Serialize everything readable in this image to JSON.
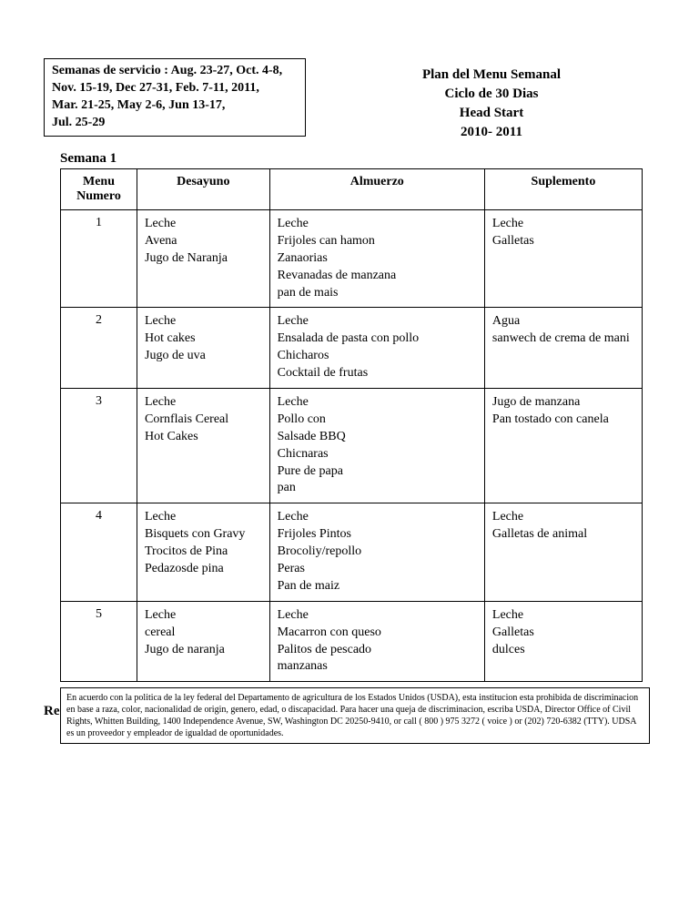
{
  "service_weeks": {
    "label": "Semanas de servicio :",
    "line1": "Aug. 23-27, Oct. 4-8,",
    "line2": "Nov. 15-19, Dec 27-31, Feb. 7-11, 2011,",
    "line3": "Mar. 21-25, May 2-6, Jun 13-17,",
    "line4": "Jul. 25-29"
  },
  "title": {
    "line1": "Plan del Menu Semanal",
    "line2": "Ciclo de 30 Dias",
    "line3": "Head Start",
    "line4": "2010- 2011"
  },
  "week_label": "Semana  1",
  "table": {
    "headers": {
      "num": "Menu Numero",
      "desayuno": "Desayuno",
      "almuerzo": "Almuerzo",
      "suplemento": "Suplemento"
    },
    "rows": [
      {
        "num": "1",
        "desayuno": [
          "Leche",
          "Avena",
          "Jugo de Naranja"
        ],
        "almuerzo": [
          "Leche",
          "Frijoles can hamon",
          "Zanaorias",
          "Revanadas de manzana",
          "pan de mais"
        ],
        "suplemento": [
          "Leche",
          "Galletas"
        ]
      },
      {
        "num": "2",
        "desayuno": [
          "Leche",
          "Hot cakes",
          "Jugo de uva"
        ],
        "almuerzo": [
          "Leche",
          "Ensalada de pasta con pollo",
          "Chicharos",
          "Cocktail de frutas"
        ],
        "suplemento": [
          "Agua",
          "sanwech de crema de mani"
        ]
      },
      {
        "num": "3",
        "desayuno": [
          "Leche",
          "Cornflais Cereal",
          "Hot Cakes"
        ],
        "almuerzo": [
          "Leche",
          "Pollo con",
          "Salsade BBQ",
          "Chicnaras",
          "Pure de papa",
          "pan"
        ],
        "suplemento": [
          "Jugo de manzana",
          "Pan tostado con canela"
        ]
      },
      {
        "num": "4",
        "desayuno": [
          "Leche",
          " Bisquets con Gravy",
          "Trocitos de Pina",
          "Pedazosde pina"
        ],
        "almuerzo": [
          "Leche",
          "Frijoles Pintos",
          "Brocoliy/repollo",
          "Peras",
          "Pan de maiz"
        ],
        "suplemento": [
          "Leche",
          "Galletas de animal"
        ]
      },
      {
        "num": "5",
        "desayuno": [
          "Leche",
          "cereal",
          "Jugo de naranja"
        ],
        "almuerzo": [
          "Leche",
          "Macarron con queso",
          "Palitos de pescado",
          "manzanas"
        ],
        "suplemento": [
          "Leche",
          "Galletas",
          "dulces"
        ]
      }
    ]
  },
  "rev_label": "Re",
  "disclaimer": "En acuerdo con la politica de la ley federal del Departamento de agricultura de  los Estados Unidos (USDA), esta institucion esta prohibida de discriminacion en base a raza, color, nacionalidad de origin, genero, edad, o discapacidad. Para hacer una queja de discriminacion, escriba USDA, Director Office of Civil Rights, Whitten Building, 1400 Independence Avenue, SW, Washington DC 20250-9410, or call ( 800 ) 975 3272 ( voice ) or (202) 720-6382 (TTY). UDSA es un proveedor  y empleador de igualdad de oportunidades."
}
